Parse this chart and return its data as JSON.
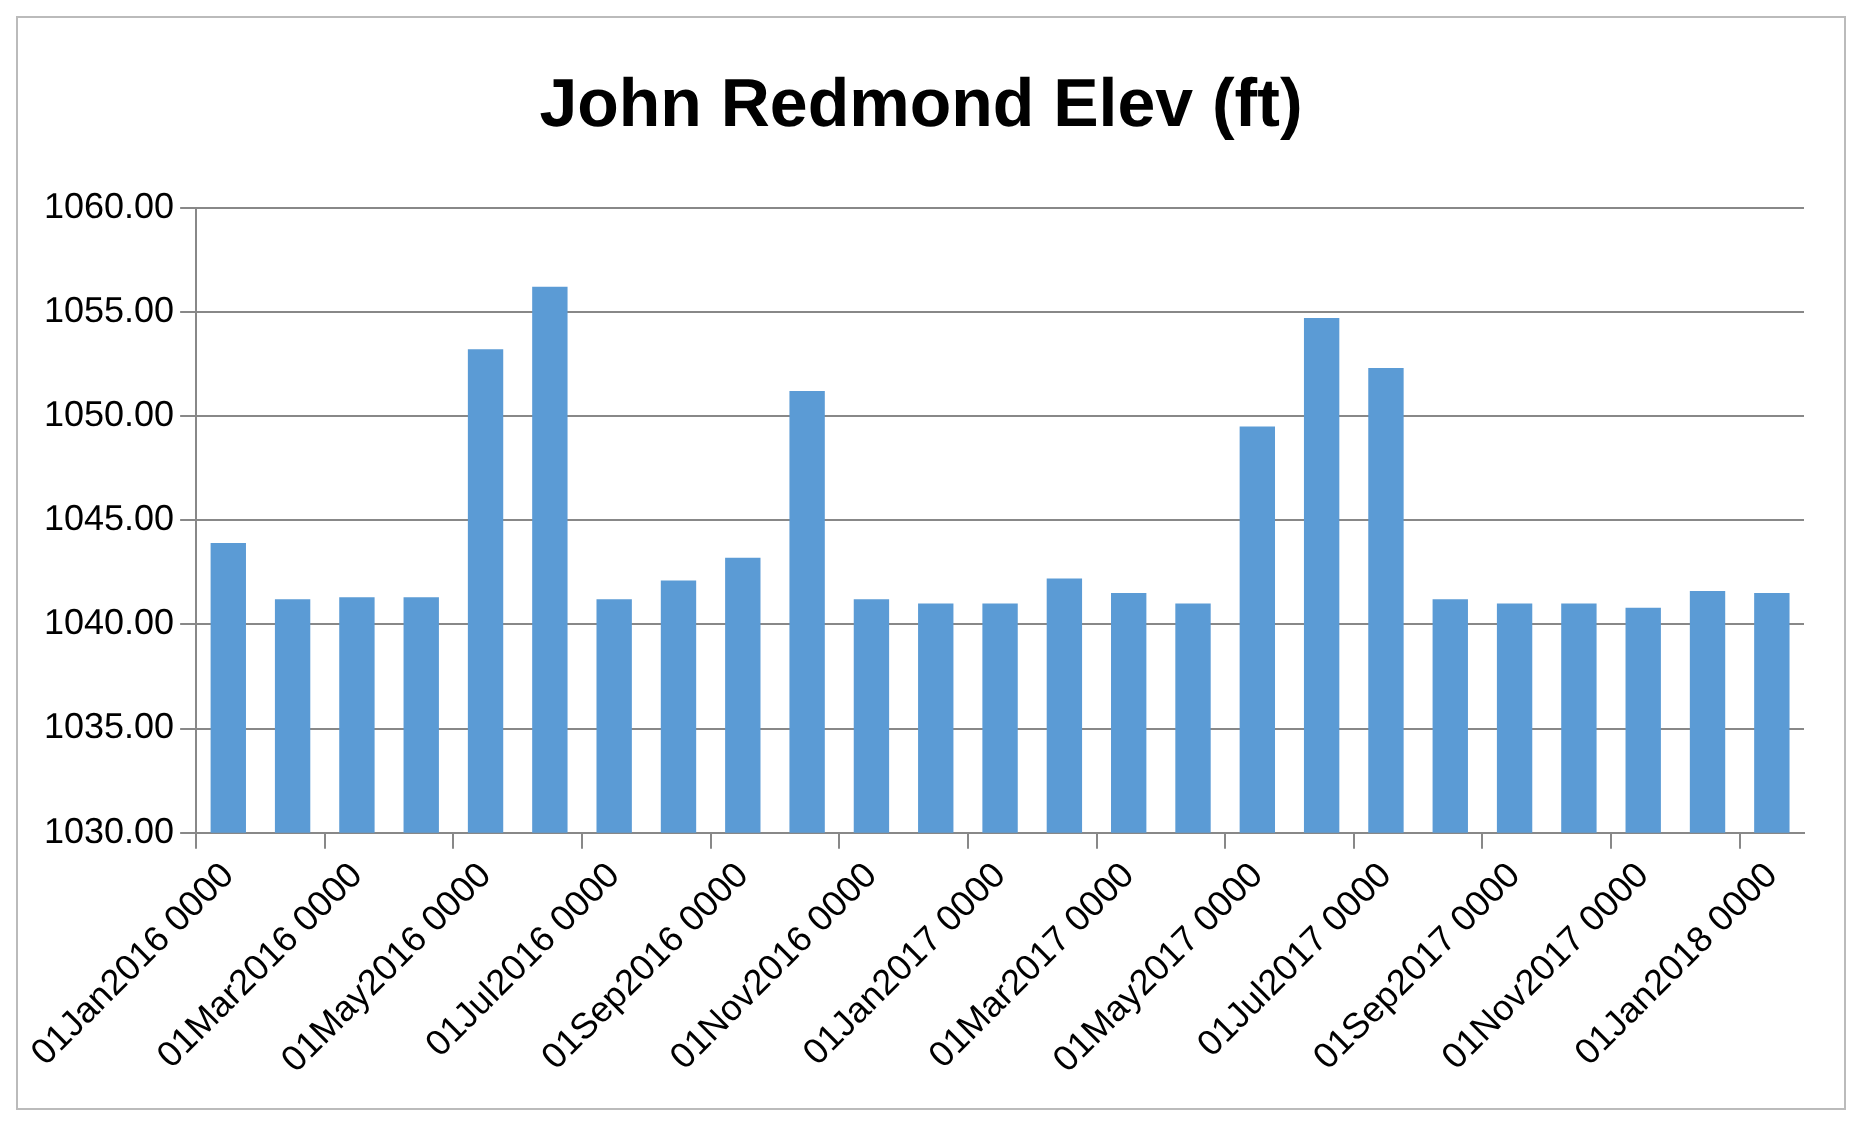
{
  "chart_data": {
    "type": "bar",
    "title": "John Redmond Elev (ft)",
    "categories": [
      "01Jan2016 0000",
      null,
      "01Mar2016 0000",
      null,
      "01May2016 0000",
      null,
      "01Jul2016 0000",
      null,
      "01Sep2016 0000",
      null,
      "01Nov2016 0000",
      null,
      "01Jan2017 0000",
      null,
      "01Mar2017 0000",
      null,
      "01May2017 0000",
      null,
      "01Jul2017 0000",
      null,
      "01Sep2017 0000",
      null,
      "01Nov2017 0000",
      null,
      "01Jan2018 0000"
    ],
    "values": [
      1043.9,
      1041.2,
      1041.3,
      1041.3,
      1053.2,
      1056.2,
      1041.2,
      1042.1,
      1043.2,
      1051.2,
      1041.2,
      1041.0,
      1041.0,
      1042.2,
      1041.5,
      1041.0,
      1049.5,
      1054.7,
      1052.3,
      1041.2,
      1041.0,
      1041.0,
      1040.8,
      1041.6,
      1041.5
    ],
    "color": "#5b9bd5",
    "ylim": [
      1030,
      1060
    ],
    "yticks": [
      {
        "value": 1030,
        "label": "1030.00"
      },
      {
        "value": 1035,
        "label": "1035.00"
      },
      {
        "value": 1040,
        "label": "1040.00"
      },
      {
        "value": 1045,
        "label": "1045.00"
      },
      {
        "value": 1050,
        "label": "1050.00"
      },
      {
        "value": 1055,
        "label": "1055.00"
      },
      {
        "value": 1060,
        "label": "1060.00"
      }
    ],
    "grid": "y",
    "legend": false
  }
}
